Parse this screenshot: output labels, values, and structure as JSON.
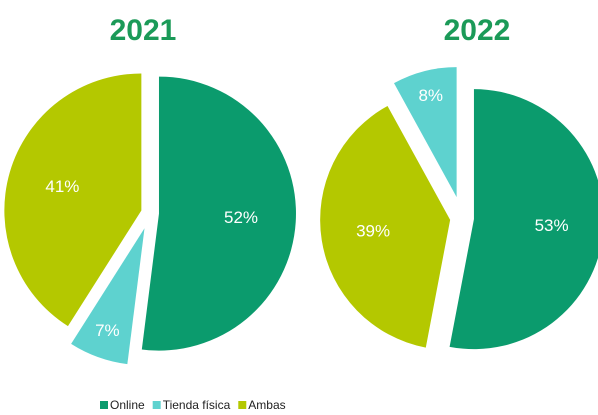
{
  "chart_data": [
    {
      "type": "pie",
      "title": "2021",
      "categories": [
        "Online",
        "Tienda física",
        "Ambas"
      ],
      "values": [
        52,
        7,
        41
      ],
      "value_labels": [
        "52%",
        "7%",
        "41%"
      ],
      "colors": [
        "#0b9b6d",
        "#5ed2cf",
        "#b4c800"
      ]
    },
    {
      "type": "pie",
      "title": "2022",
      "categories": [
        "Online",
        "Ambas",
        "Tienda física"
      ],
      "values": [
        53,
        39,
        8
      ],
      "value_labels": [
        "53%",
        "39%",
        "8%"
      ],
      "colors": [
        "#0b9b6d",
        "#b4c800",
        "#5ed2cf"
      ]
    }
  ]
}
